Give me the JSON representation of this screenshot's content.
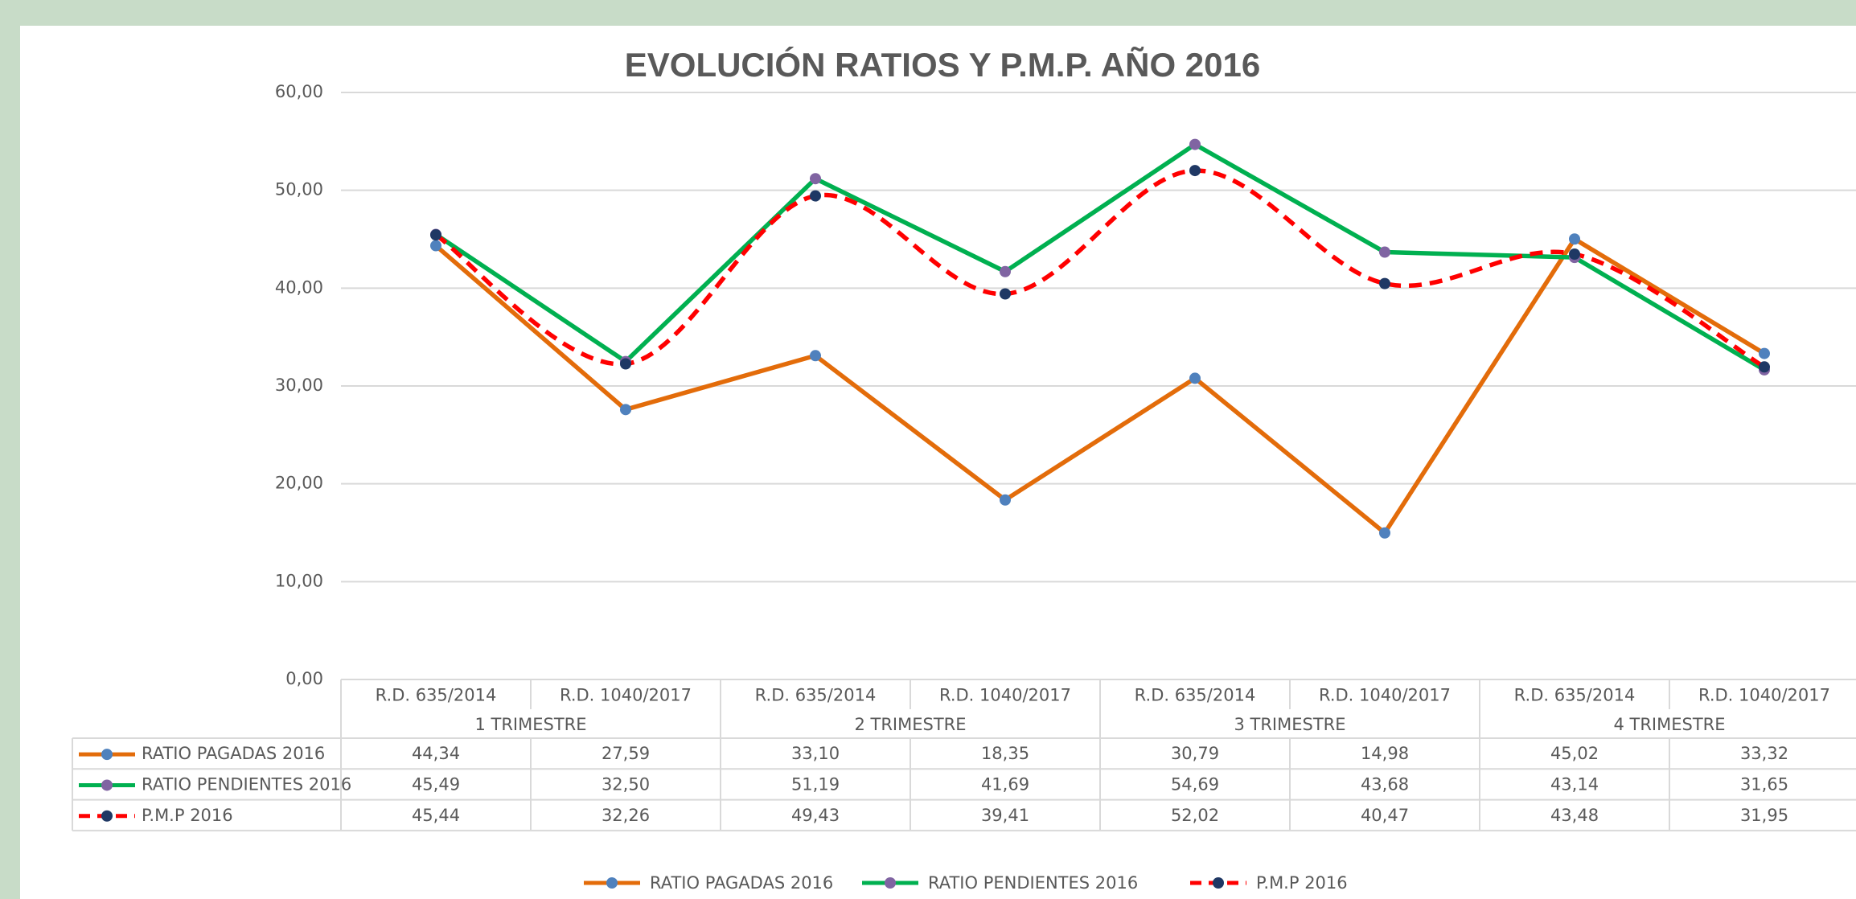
{
  "chart_data": {
    "type": "line",
    "title": "EVOLUCIÓN RATIOS Y P.M.P. AÑO 2016",
    "categories": [
      "R.D. 635/2014",
      "R.D. 1040/2017",
      "R.D. 635/2014",
      "R.D. 1040/2017",
      "R.D. 635/2014",
      "R.D. 1040/2017",
      "R.D. 635/2014",
      "R.D. 1040/2017"
    ],
    "groups": [
      "1 TRIMESTRE",
      "2 TRIMESTRE",
      "3 TRIMESTRE",
      "4 TRIMESTRE"
    ],
    "series": [
      {
        "name": "RATIO PAGADAS 2016",
        "color": "#e36c0a",
        "marker_color": "#4f81bd",
        "dashed": false,
        "smooth": false,
        "values": [
          44.34,
          27.59,
          33.1,
          18.35,
          30.79,
          14.98,
          45.02,
          33.32
        ],
        "value_labels": [
          "44,34",
          "27,59",
          "33,10",
          "18,35",
          "30,79",
          "14,98",
          "45,02",
          "33,32"
        ]
      },
      {
        "name": "RATIO PENDIENTES 2016",
        "color": "#00b050",
        "marker_color": "#8064a2",
        "dashed": false,
        "smooth": false,
        "values": [
          45.49,
          32.5,
          51.19,
          41.69,
          54.69,
          43.68,
          43.14,
          31.65
        ],
        "value_labels": [
          "45,49",
          "32,50",
          "51,19",
          "41,69",
          "54,69",
          "43,68",
          "43,14",
          "31,65"
        ]
      },
      {
        "name": "P.M.P 2016",
        "color": "#ff0000",
        "marker_color": "#1f3864",
        "dashed": true,
        "smooth": true,
        "values": [
          45.44,
          32.26,
          49.43,
          39.41,
          52.02,
          40.47,
          43.48,
          31.95
        ],
        "value_labels": [
          "45,44",
          "32,26",
          "49,43",
          "39,41",
          "52,02",
          "40,47",
          "43,48",
          "31,95"
        ]
      }
    ],
    "ylim": [
      0,
      60
    ],
    "yticks": [
      {
        "value": 0,
        "label": "0,00"
      },
      {
        "value": 10,
        "label": "10,00"
      },
      {
        "value": 20,
        "label": "20,00"
      },
      {
        "value": 30,
        "label": "30,00"
      },
      {
        "value": 40,
        "label": "40,00"
      },
      {
        "value": 50,
        "label": "50,00"
      },
      {
        "value": 60,
        "label": "60,00"
      }
    ],
    "grid": true,
    "legend": "bottom"
  }
}
